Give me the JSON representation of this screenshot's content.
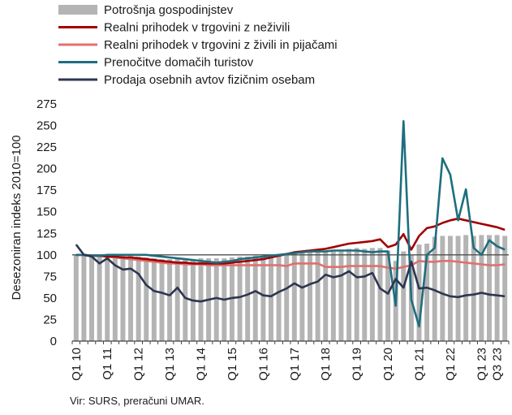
{
  "chart_data": {
    "type": "bar+line",
    "ylabel": "Desezoniran indeks 2010=100",
    "ylim": [
      0,
      275
    ],
    "yticks": [
      0,
      25,
      50,
      75,
      100,
      125,
      150,
      175,
      200,
      225,
      250,
      275
    ],
    "x_tick_labels": [
      "Q1 10",
      "Q1 11",
      "Q1 12",
      "Q1 13",
      "Q1 14",
      "Q1 15",
      "Q1 16",
      "Q1 17",
      "Q1 18",
      "Q1 19",
      "Q1 20",
      "Q1 21",
      "Q1 22",
      "Q1 23",
      "Q3 23"
    ],
    "x_tick_index": [
      0,
      4,
      8,
      12,
      16,
      20,
      24,
      28,
      32,
      36,
      40,
      44,
      48,
      52,
      54
    ],
    "reference_line": 100,
    "legend_placement": "top-left",
    "colors": {
      "bars": "#b4b4b4",
      "nonfood": "#a00000",
      "food": "#e07070",
      "tourists": "#1e6e7e",
      "cars": "#2e3550",
      "reference": "#505050"
    },
    "legend": [
      {
        "key": "bars",
        "label": "Potrošnja gospodinjstev",
        "kind": "bar"
      },
      {
        "key": "nonfood",
        "label": "Realni prihodek v trgovini z neživili",
        "kind": "line"
      },
      {
        "key": "food",
        "label": "Realni prihodek v trgovini z živili in pijačami",
        "kind": "line"
      },
      {
        "key": "tourists",
        "label": "Prenočitve domačih turistov",
        "kind": "line"
      },
      {
        "key": "cars",
        "label": "Prodaja osebnih avtov fizičnim osebam",
        "kind": "line"
      }
    ],
    "bars": {
      "name": "Potrošnja gospodinjstev",
      "values": [
        100,
        100,
        100,
        100,
        100,
        100,
        100,
        99,
        98,
        97,
        96,
        95,
        95,
        95,
        95,
        95,
        96,
        96,
        96,
        96,
        97,
        98,
        98,
        99,
        99,
        100,
        101,
        102,
        103,
        104,
        104,
        105,
        105,
        106,
        106,
        107,
        108,
        107,
        108,
        108,
        105,
        93,
        104,
        100,
        112,
        113,
        121,
        122,
        122,
        122,
        123,
        122,
        123,
        123,
        123,
        122
      ]
    },
    "series": [
      {
        "key": "nonfood",
        "name": "Realni prihodek v trgovini z neživili",
        "values": [
          100,
          100,
          99,
          99,
          98,
          98,
          97,
          97,
          96,
          95,
          94,
          93,
          92,
          91,
          91,
          90,
          90,
          90,
          90,
          90,
          91,
          92,
          93,
          94,
          95,
          97,
          99,
          101,
          103,
          104,
          105,
          106,
          107,
          109,
          111,
          113,
          114,
          115,
          116,
          118,
          109,
          112,
          124,
          106,
          122,
          131,
          133,
          137,
          140,
          142,
          140,
          138,
          136,
          134,
          132,
          129
        ]
      },
      {
        "key": "food",
        "name": "Realni prihodek v trgovini z živili in pijačami",
        "values": [
          100,
          100,
          99,
          99,
          98,
          97,
          96,
          95,
          94,
          93,
          92,
          91,
          90,
          90,
          89,
          89,
          89,
          88,
          88,
          88,
          88,
          88,
          88,
          88,
          88,
          88,
          88,
          87,
          90,
          90,
          90,
          90,
          86,
          86,
          86,
          87,
          87,
          87,
          87,
          87,
          85,
          84,
          86,
          88,
          93,
          92,
          92,
          93,
          93,
          92,
          91,
          90,
          89,
          88,
          88,
          89
        ]
      },
      {
        "key": "tourists",
        "name": "Prenočitve domačih turistov",
        "values": [
          100,
          100,
          99,
          99,
          100,
          100,
          100,
          100,
          100,
          100,
          99,
          98,
          97,
          96,
          95,
          94,
          93,
          92,
          91,
          92,
          93,
          95,
          96,
          97,
          98,
          99,
          100,
          101,
          102,
          103,
          104,
          104,
          104,
          105,
          105,
          105,
          105,
          104,
          103,
          104,
          104,
          41,
          255,
          48,
          17,
          100,
          108,
          212,
          193,
          140,
          176,
          108,
          100,
          117,
          110,
          106
        ]
      },
      {
        "key": "cars",
        "name": "Prodaja osebnih avtov fizičnim osebam",
        "values": [
          112,
          100,
          98,
          90,
          96,
          88,
          83,
          84,
          78,
          65,
          58,
          56,
          53,
          62,
          50,
          47,
          46,
          48,
          50,
          48,
          50,
          51,
          54,
          58,
          53,
          52,
          57,
          61,
          67,
          62,
          66,
          69,
          77,
          74,
          76,
          81,
          74,
          75,
          79,
          61,
          55,
          72,
          62,
          92,
          61,
          62,
          59,
          55,
          52,
          51,
          53,
          54,
          56,
          54,
          53,
          52
        ]
      }
    ]
  },
  "source": "Vir: SURS, preračuni UMAR."
}
